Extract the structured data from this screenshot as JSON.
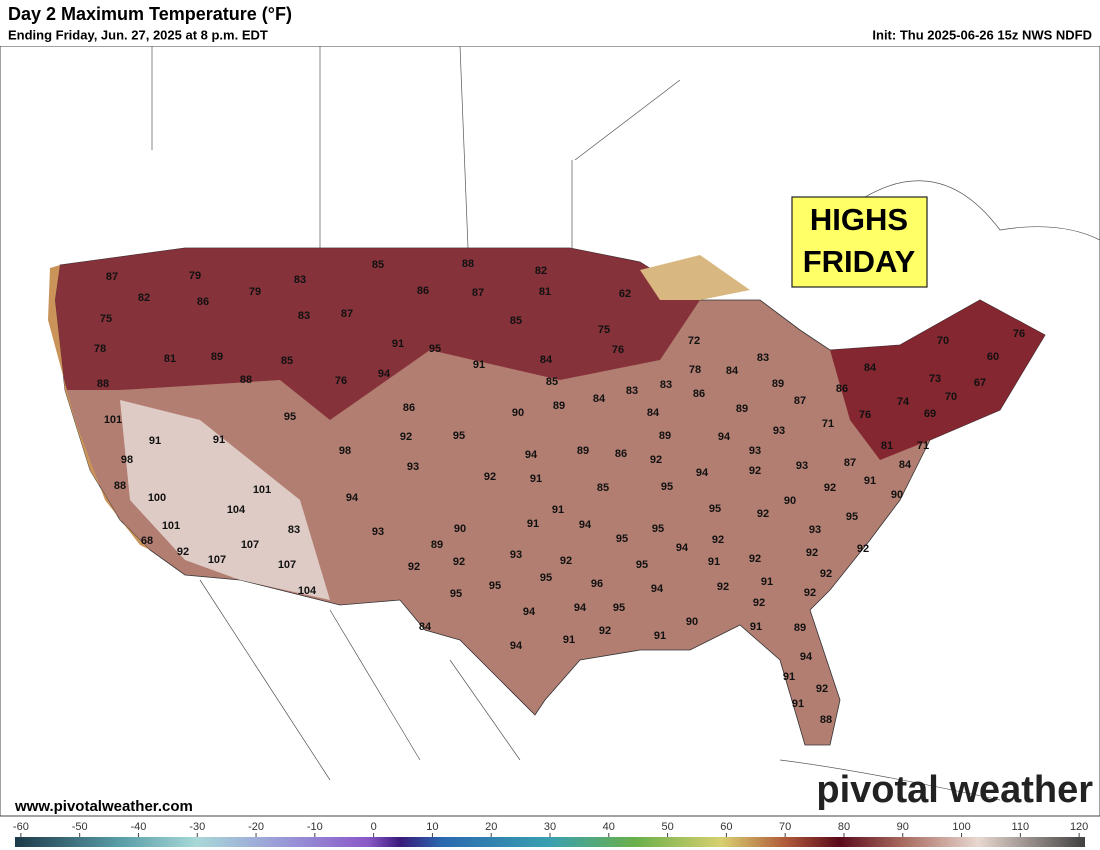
{
  "header": {
    "title": "Day 2 Maximum Temperature (°F)",
    "subtitle": "Ending Friday, Jun. 27, 2025 at 8 p.m. EDT",
    "init": "Init: Thu 2025-06-26 15z NWS NDFD"
  },
  "callout": {
    "lines": [
      "HIGHS",
      "FRIDAY"
    ]
  },
  "footer": {
    "website": "www.pivotalweather.com",
    "logo": "pivotal weather"
  },
  "map": {
    "temperature_labels": [
      87,
      79,
      83,
      85,
      88,
      82,
      82,
      86,
      79,
      86,
      87,
      81,
      62,
      75,
      83,
      87,
      85,
      75,
      78,
      81,
      89,
      85,
      91,
      95,
      76,
      72,
      70,
      76,
      88,
      88,
      76,
      94,
      91,
      84,
      78,
      84,
      83,
      84,
      60,
      85,
      83,
      83,
      89,
      86,
      73,
      67,
      101,
      95,
      86,
      90,
      89,
      84,
      86,
      87,
      74,
      70,
      76,
      71,
      84,
      89,
      69,
      91,
      91,
      92,
      95,
      94,
      89,
      86,
      89,
      94,
      93,
      81,
      71,
      98,
      98,
      93,
      92,
      91,
      92,
      93,
      92,
      93,
      87,
      84,
      88,
      85,
      95,
      94,
      91,
      92,
      90,
      100,
      101,
      104,
      94,
      91,
      94,
      90,
      95,
      92,
      95,
      101,
      83,
      93,
      90,
      91,
      95,
      95,
      93,
      68,
      107,
      89,
      94,
      92,
      92,
      92,
      92,
      92,
      107,
      93,
      92,
      92,
      91,
      92,
      107,
      92,
      95,
      95,
      96,
      95,
      91,
      92,
      94,
      104,
      95,
      92,
      92,
      94,
      94,
      95,
      84,
      91,
      92,
      90,
      91,
      91,
      89,
      94,
      94,
      91,
      92,
      91,
      88
    ]
  },
  "colorbar": {
    "lim": [
      -61,
      121
    ],
    "ticks": [
      -60,
      -50,
      -40,
      -30,
      -20,
      -10,
      0,
      10,
      20,
      30,
      40,
      50,
      60,
      70,
      80,
      90,
      100,
      110,
      120
    ]
  }
}
